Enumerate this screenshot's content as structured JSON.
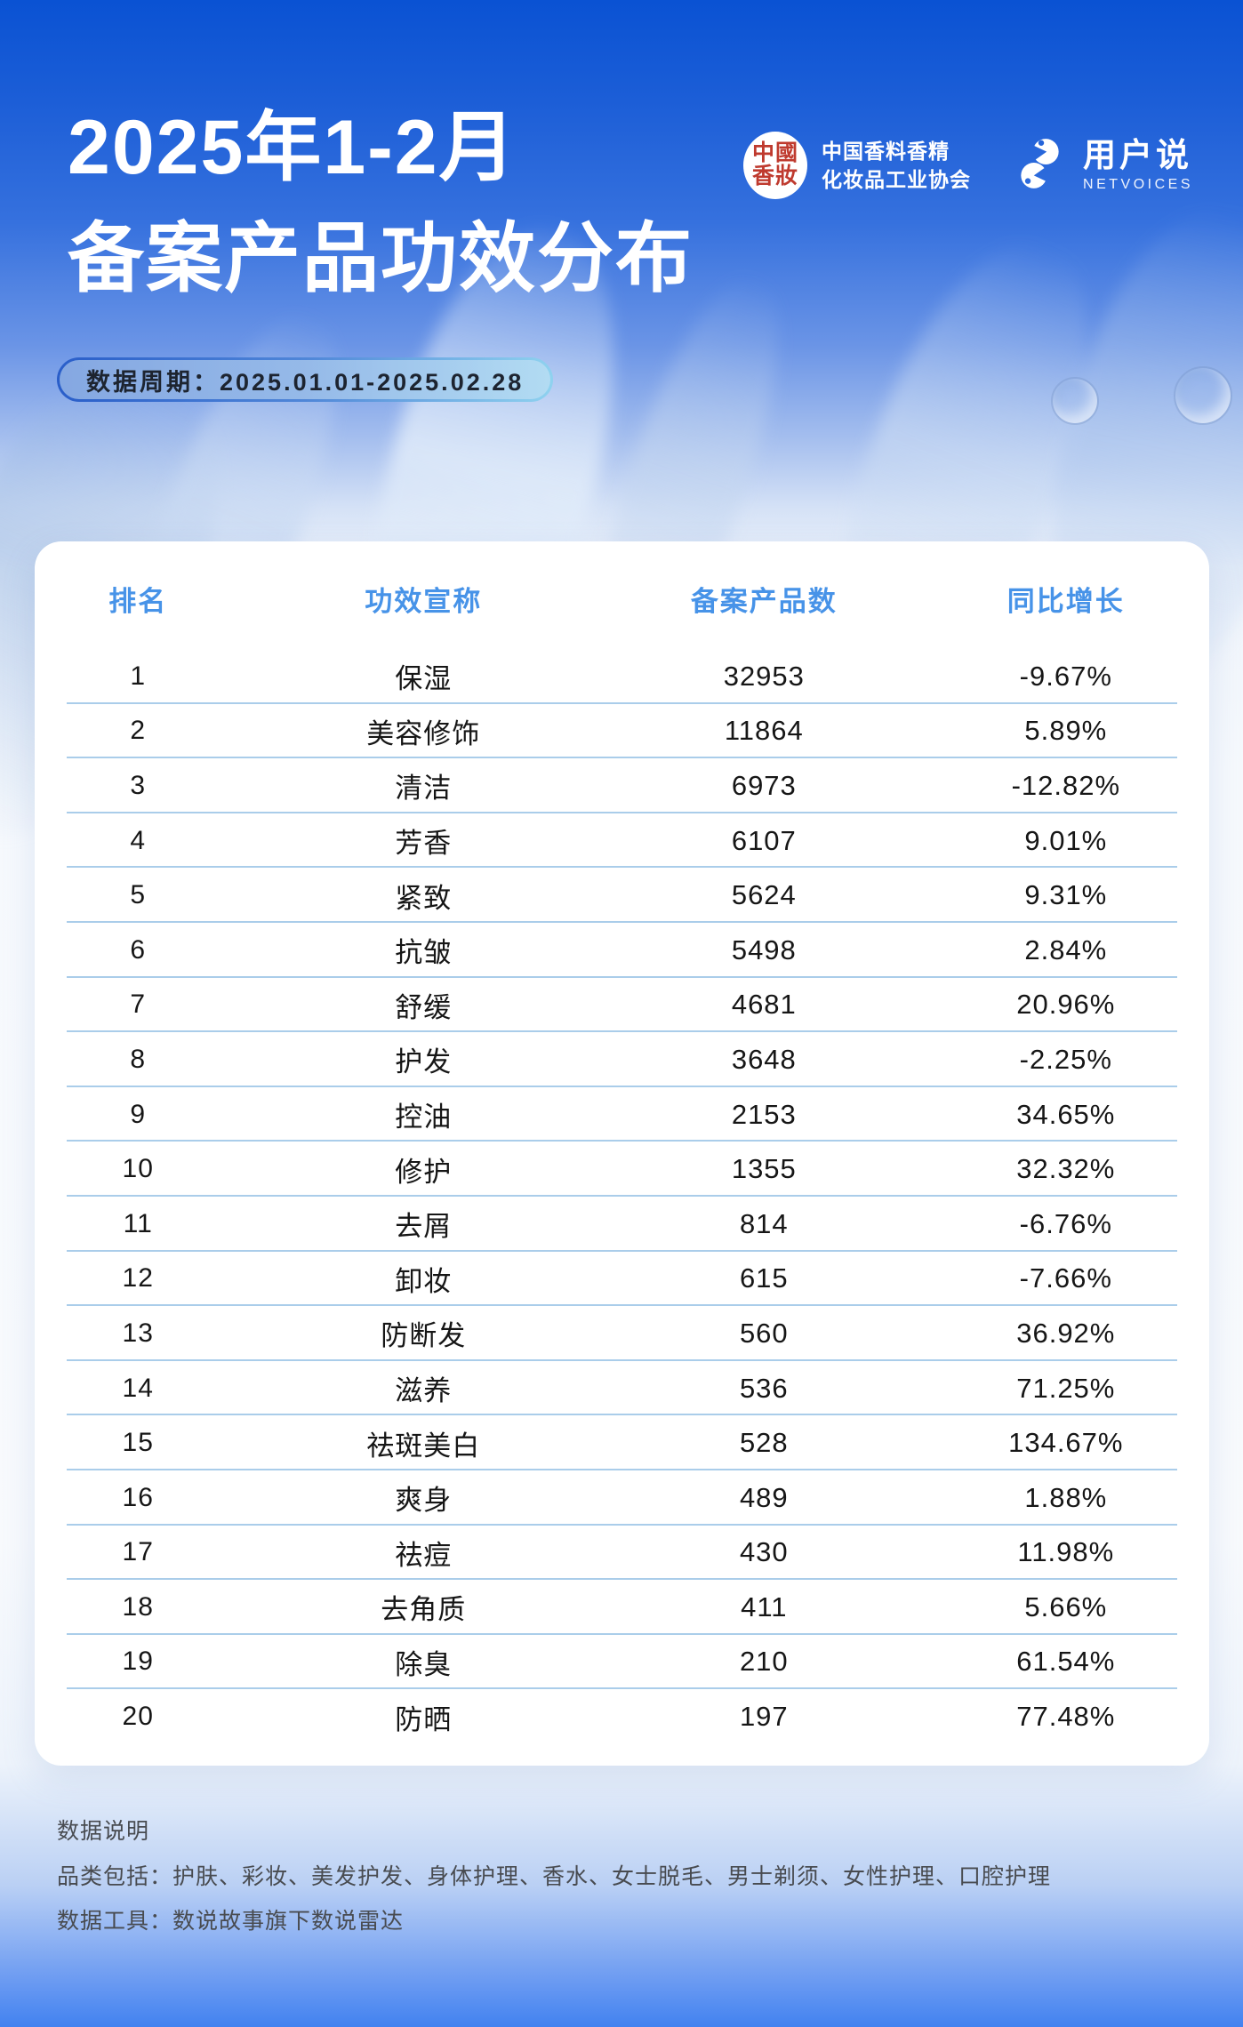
{
  "header": {
    "title_line1": "2025年1-2月",
    "title_line2": "备案产品功效分布",
    "period_label": "数据周期：2025.01.01-2025.02.28"
  },
  "logos": {
    "assoc": {
      "seal_top": "中國",
      "seal_bottom": "香妝",
      "name_line1": "中国香料香精",
      "name_line2": "化妆品工业协会"
    },
    "netvoices": {
      "name": "用户说",
      "subtitle": "NETVOICES"
    }
  },
  "table": {
    "columns": [
      "排名",
      "功效宣称",
      "备案产品数",
      "同比增长"
    ],
    "rows": [
      {
        "rank": "1",
        "claim": "保湿",
        "count": "32953",
        "growth": "-9.67%"
      },
      {
        "rank": "2",
        "claim": "美容修饰",
        "count": "11864",
        "growth": "5.89%"
      },
      {
        "rank": "3",
        "claim": "清洁",
        "count": "6973",
        "growth": "-12.82%"
      },
      {
        "rank": "4",
        "claim": "芳香",
        "count": "6107",
        "growth": "9.01%"
      },
      {
        "rank": "5",
        "claim": "紧致",
        "count": "5624",
        "growth": "9.31%"
      },
      {
        "rank": "6",
        "claim": "抗皱",
        "count": "5498",
        "growth": "2.84%"
      },
      {
        "rank": "7",
        "claim": "舒缓",
        "count": "4681",
        "growth": "20.96%"
      },
      {
        "rank": "8",
        "claim": "护发",
        "count": "3648",
        "growth": "-2.25%"
      },
      {
        "rank": "9",
        "claim": "控油",
        "count": "2153",
        "growth": "34.65%"
      },
      {
        "rank": "10",
        "claim": "修护",
        "count": "1355",
        "growth": "32.32%"
      },
      {
        "rank": "11",
        "claim": "去屑",
        "count": "814",
        "growth": "-6.76%"
      },
      {
        "rank": "12",
        "claim": "卸妆",
        "count": "615",
        "growth": "-7.66%"
      },
      {
        "rank": "13",
        "claim": "防断发",
        "count": "560",
        "growth": "36.92%"
      },
      {
        "rank": "14",
        "claim": "滋养",
        "count": "536",
        "growth": "71.25%"
      },
      {
        "rank": "15",
        "claim": "祛斑美白",
        "count": "528",
        "growth": "134.67%"
      },
      {
        "rank": "16",
        "claim": "爽身",
        "count": "489",
        "growth": "1.88%"
      },
      {
        "rank": "17",
        "claim": "祛痘",
        "count": "430",
        "growth": "11.98%"
      },
      {
        "rank": "18",
        "claim": "去角质",
        "count": "411",
        "growth": "5.66%"
      },
      {
        "rank": "19",
        "claim": "除臭",
        "count": "210",
        "growth": "61.54%"
      },
      {
        "rank": "20",
        "claim": "防晒",
        "count": "197",
        "growth": "77.48%"
      }
    ]
  },
  "footer": {
    "heading": "数据说明",
    "categories": "品类包括：护肤、彩妆、美发护发、身体护理、香水、女士脱毛、男士剃须、女性护理、口腔护理",
    "tool": "数据工具：数说故事旗下数说雷达"
  },
  "colors": {
    "top_blue": "#0a52d3",
    "bottom_blue": "#4282f0",
    "table_header_text": "#4793e8",
    "row_separator": "#aacdea",
    "seal_red": "#bf3a2e",
    "badge_border_left": "#2a5ec9",
    "badge_border_right": "#8fd2ef"
  },
  "chart_data": {
    "type": "table",
    "title": "2025年1-2月备案产品功效分布",
    "period": "2025.01.01-2025.02.28",
    "columns": [
      "排名",
      "功效宣称",
      "备案产品数",
      "同比增长"
    ],
    "categories": [
      "保湿",
      "美容修饰",
      "清洁",
      "芳香",
      "紧致",
      "抗皱",
      "舒缓",
      "护发",
      "控油",
      "修护",
      "去屑",
      "卸妆",
      "防断发",
      "滋养",
      "祛斑美白",
      "爽身",
      "祛痘",
      "去角质",
      "除臭",
      "防晒"
    ],
    "series": [
      {
        "name": "备案产品数",
        "values": [
          32953,
          11864,
          6973,
          6107,
          5624,
          5498,
          4681,
          3648,
          2153,
          1355,
          814,
          615,
          560,
          536,
          528,
          489,
          430,
          411,
          210,
          197
        ]
      },
      {
        "name": "同比增长%",
        "values": [
          -9.67,
          5.89,
          -12.82,
          9.01,
          9.31,
          2.84,
          20.96,
          -2.25,
          34.65,
          32.32,
          -6.76,
          -7.66,
          36.92,
          71.25,
          134.67,
          1.88,
          11.98,
          5.66,
          61.54,
          77.48
        ]
      }
    ]
  }
}
